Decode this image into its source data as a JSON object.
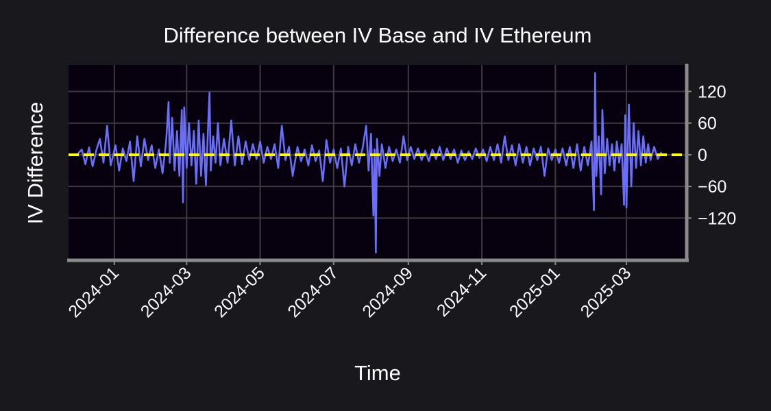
{
  "chart_data": {
    "type": "line",
    "title": "Difference between IV Base and IV Ethereum",
    "xlabel": "Time",
    "ylabel": "IV Difference",
    "x_tick_labels": [
      "2024-01",
      "2024-03",
      "2024-05",
      "2024-07",
      "2024-09",
      "2024-11",
      "2025-01",
      "2025-03"
    ],
    "x_ticks": [
      "2024-01-01",
      "2024-03-01",
      "2024-05-01",
      "2024-07-01",
      "2024-09-01",
      "2024-11-01",
      "2025-01-01",
      "2025-03-01"
    ],
    "xlim": [
      "2023-11-24",
      "2025-04-20"
    ],
    "y_ticks": [
      120,
      60,
      0,
      -60,
      -120
    ],
    "y_tick_labels": [
      "120",
      "60",
      "0",
      "−60",
      "−120"
    ],
    "ylim": [
      -200,
      170
    ],
    "y_axis_side": "right",
    "grid": true,
    "reference_line": {
      "y": 0,
      "style": "dashed",
      "color": "#ffff00"
    },
    "colors": {
      "background": "#19181d",
      "plot_background": "#07000f",
      "series": "#6b6ef7",
      "grid": "#3b3a40",
      "axis": "#8a8a8a",
      "text": "#ffffff",
      "reference": "#ffff00"
    },
    "series": [
      {
        "points": [
          [
            "2023-12-01",
            0
          ],
          [
            "2023-12-05",
            10
          ],
          [
            "2023-12-08",
            -18
          ],
          [
            "2023-12-11",
            14
          ],
          [
            "2023-12-14",
            -22
          ],
          [
            "2023-12-17",
            8
          ],
          [
            "2023-12-20",
            30
          ],
          [
            "2023-12-23",
            -15
          ],
          [
            "2023-12-26",
            55
          ],
          [
            "2023-12-29",
            -20
          ],
          [
            "2024-01-02",
            18
          ],
          [
            "2024-01-05",
            -30
          ],
          [
            "2024-01-08",
            12
          ],
          [
            "2024-01-11",
            -12
          ],
          [
            "2024-01-14",
            25
          ],
          [
            "2024-01-17",
            -50
          ],
          [
            "2024-01-20",
            35
          ],
          [
            "2024-01-23",
            -22
          ],
          [
            "2024-01-26",
            30
          ],
          [
            "2024-01-29",
            -10
          ],
          [
            "2024-02-01",
            18
          ],
          [
            "2024-02-04",
            -25
          ],
          [
            "2024-02-07",
            10
          ],
          [
            "2024-02-10",
            -35
          ],
          [
            "2024-02-13",
            25
          ],
          [
            "2024-02-15",
            100
          ],
          [
            "2024-02-16",
            -15
          ],
          [
            "2024-02-18",
            70
          ],
          [
            "2024-02-20",
            -30
          ],
          [
            "2024-02-22",
            45
          ],
          [
            "2024-02-24",
            -40
          ],
          [
            "2024-02-26",
            85
          ],
          [
            "2024-02-27",
            -90
          ],
          [
            "2024-02-28",
            90
          ],
          [
            "2024-03-01",
            -25
          ],
          [
            "2024-03-03",
            60
          ],
          [
            "2024-03-05",
            -20
          ],
          [
            "2024-03-07",
            45
          ],
          [
            "2024-03-09",
            -55
          ],
          [
            "2024-03-11",
            65
          ],
          [
            "2024-03-13",
            -40
          ],
          [
            "2024-03-15",
            40
          ],
          [
            "2024-03-17",
            -58
          ],
          [
            "2024-03-19",
            65
          ],
          [
            "2024-03-20",
            118
          ],
          [
            "2024-03-21",
            -30
          ],
          [
            "2024-03-23",
            35
          ],
          [
            "2024-03-25",
            -15
          ],
          [
            "2024-03-27",
            60
          ],
          [
            "2024-03-29",
            -20
          ],
          [
            "2024-04-01",
            30
          ],
          [
            "2024-04-04",
            -15
          ],
          [
            "2024-04-07",
            65
          ],
          [
            "2024-04-10",
            -20
          ],
          [
            "2024-04-13",
            35
          ],
          [
            "2024-04-16",
            -18
          ],
          [
            "2024-04-19",
            25
          ],
          [
            "2024-04-22",
            -10
          ],
          [
            "2024-04-25",
            20
          ],
          [
            "2024-04-28",
            -8
          ],
          [
            "2024-05-01",
            25
          ],
          [
            "2024-05-04",
            -15
          ],
          [
            "2024-05-07",
            15
          ],
          [
            "2024-05-10",
            -8
          ],
          [
            "2024-05-13",
            20
          ],
          [
            "2024-05-16",
            -25
          ],
          [
            "2024-05-19",
            55
          ],
          [
            "2024-05-22",
            -10
          ],
          [
            "2024-05-25",
            15
          ],
          [
            "2024-05-28",
            -40
          ],
          [
            "2024-06-01",
            15
          ],
          [
            "2024-06-04",
            -12
          ],
          [
            "2024-06-07",
            10
          ],
          [
            "2024-06-10",
            -20
          ],
          [
            "2024-06-13",
            18
          ],
          [
            "2024-06-16",
            -12
          ],
          [
            "2024-06-19",
            8
          ],
          [
            "2024-06-22",
            -50
          ],
          [
            "2024-06-25",
            28
          ],
          [
            "2024-06-28",
            -15
          ],
          [
            "2024-07-01",
            10
          ],
          [
            "2024-07-04",
            -25
          ],
          [
            "2024-07-07",
            12
          ],
          [
            "2024-07-10",
            -60
          ],
          [
            "2024-07-13",
            15
          ],
          [
            "2024-07-16",
            -20
          ],
          [
            "2024-07-19",
            20
          ],
          [
            "2024-07-22",
            -15
          ],
          [
            "2024-07-25",
            12
          ],
          [
            "2024-07-28",
            55
          ],
          [
            "2024-07-30",
            -30
          ],
          [
            "2024-08-01",
            40
          ],
          [
            "2024-08-03",
            -115
          ],
          [
            "2024-08-04",
            10
          ],
          [
            "2024-08-05",
            -185
          ],
          [
            "2024-08-06",
            30
          ],
          [
            "2024-08-08",
            -40
          ],
          [
            "2024-08-10",
            20
          ],
          [
            "2024-08-13",
            -25
          ],
          [
            "2024-08-16",
            15
          ],
          [
            "2024-08-19",
            -12
          ],
          [
            "2024-08-22",
            10
          ],
          [
            "2024-08-25",
            -15
          ],
          [
            "2024-08-28",
            35
          ],
          [
            "2024-08-31",
            -10
          ],
          [
            "2024-09-03",
            15
          ],
          [
            "2024-09-06",
            -8
          ],
          [
            "2024-09-09",
            12
          ],
          [
            "2024-09-12",
            -10
          ],
          [
            "2024-09-15",
            8
          ],
          [
            "2024-09-18",
            -12
          ],
          [
            "2024-09-21",
            10
          ],
          [
            "2024-09-24",
            -8
          ],
          [
            "2024-09-27",
            15
          ],
          [
            "2024-09-30",
            -10
          ],
          [
            "2024-10-03",
            12
          ],
          [
            "2024-10-06",
            -8
          ],
          [
            "2024-10-09",
            10
          ],
          [
            "2024-10-12",
            -15
          ],
          [
            "2024-10-15",
            8
          ],
          [
            "2024-10-18",
            -10
          ],
          [
            "2024-10-21",
            6
          ],
          [
            "2024-10-24",
            -8
          ],
          [
            "2024-10-27",
            12
          ],
          [
            "2024-10-30",
            -6
          ],
          [
            "2024-11-02",
            10
          ],
          [
            "2024-11-05",
            -12
          ],
          [
            "2024-11-08",
            15
          ],
          [
            "2024-11-11",
            -10
          ],
          [
            "2024-11-14",
            20
          ],
          [
            "2024-11-17",
            -15
          ],
          [
            "2024-11-20",
            35
          ],
          [
            "2024-11-23",
            -10
          ],
          [
            "2024-11-26",
            18
          ],
          [
            "2024-11-29",
            -20
          ],
          [
            "2024-12-02",
            20
          ],
          [
            "2024-12-05",
            -15
          ],
          [
            "2024-12-08",
            15
          ],
          [
            "2024-12-11",
            -20
          ],
          [
            "2024-12-14",
            12
          ],
          [
            "2024-12-17",
            -10
          ],
          [
            "2024-12-20",
            15
          ],
          [
            "2024-12-23",
            -40
          ],
          [
            "2024-12-26",
            12
          ],
          [
            "2024-12-29",
            -10
          ],
          [
            "2025-01-01",
            10
          ],
          [
            "2025-01-04",
            -15
          ],
          [
            "2025-01-07",
            12
          ],
          [
            "2025-01-10",
            -20
          ],
          [
            "2025-01-13",
            15
          ],
          [
            "2025-01-16",
            -25
          ],
          [
            "2025-01-19",
            20
          ],
          [
            "2025-01-22",
            -30
          ],
          [
            "2025-01-25",
            15
          ],
          [
            "2025-01-28",
            -20
          ],
          [
            "2025-01-31",
            25
          ],
          [
            "2025-02-02",
            -105
          ],
          [
            "2025-02-03",
            155
          ],
          [
            "2025-02-04",
            -40
          ],
          [
            "2025-02-06",
            35
          ],
          [
            "2025-02-08",
            -75
          ],
          [
            "2025-02-09",
            85
          ],
          [
            "2025-02-11",
            -35
          ],
          [
            "2025-02-13",
            30
          ],
          [
            "2025-02-15",
            -20
          ],
          [
            "2025-02-17",
            20
          ],
          [
            "2025-02-19",
            -30
          ],
          [
            "2025-02-21",
            25
          ],
          [
            "2025-02-23",
            -15
          ],
          [
            "2025-02-25",
            20
          ],
          [
            "2025-02-27",
            -95
          ],
          [
            "2025-02-28",
            75
          ],
          [
            "2025-03-01",
            -100
          ],
          [
            "2025-03-03",
            95
          ],
          [
            "2025-03-05",
            -60
          ],
          [
            "2025-03-07",
            60
          ],
          [
            "2025-03-09",
            -25
          ],
          [
            "2025-03-11",
            45
          ],
          [
            "2025-03-13",
            -20
          ],
          [
            "2025-03-15",
            35
          ],
          [
            "2025-03-17",
            -15
          ],
          [
            "2025-03-19",
            20
          ],
          [
            "2025-03-21",
            -10
          ],
          [
            "2025-03-24",
            15
          ],
          [
            "2025-03-27",
            -8
          ],
          [
            "2025-03-30",
            5
          ]
        ]
      }
    ]
  }
}
